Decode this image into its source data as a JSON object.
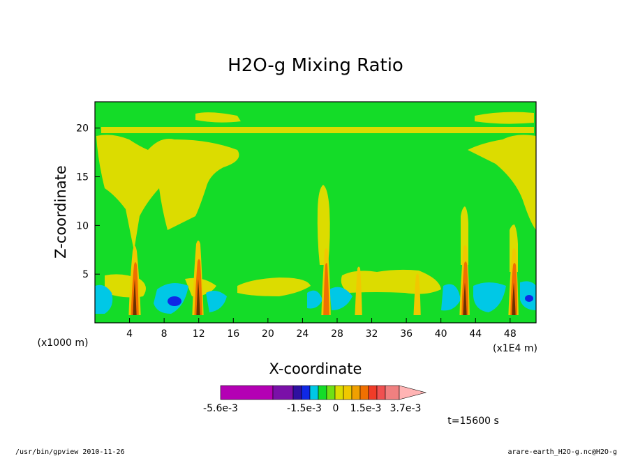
{
  "chart_data": {
    "type": "heatmap",
    "title": "H2O-g Mixing Ratio",
    "xlabel": "X-coordinate",
    "ylabel": "Z-coordinate",
    "x_unit_left": "(x1000 m)",
    "x_unit_right": "(x1E4 m)",
    "xlim": [
      0,
      51
    ],
    "ylim": [
      0,
      22.7
    ],
    "xticks": [
      "4",
      "8",
      "12",
      "16",
      "20",
      "24",
      "28",
      "32",
      "36",
      "40",
      "44",
      "48"
    ],
    "yticks": [
      "5",
      "10",
      "15",
      "20"
    ],
    "colorbar": {
      "colors": [
        "#b400b4",
        "#7a10a8",
        "#2e10a0",
        "#0f28e6",
        "#00c8e6",
        "#14dc28",
        "#70e014",
        "#dcdc00",
        "#f0c800",
        "#f0a000",
        "#f07000",
        "#f03c28",
        "#f05050",
        "#f08080",
        "#ffb4b4"
      ],
      "labels": [
        "-5.6e-3",
        "-1.5e-3",
        "0",
        "1.5e-3",
        "3.7e-3"
      ]
    },
    "time_label": "t=15600 s",
    "footer_left": "/usr/bin/gpview  2010-11-26",
    "footer_right": "arare-earth_H2O-g.nc@H2O-g"
  }
}
